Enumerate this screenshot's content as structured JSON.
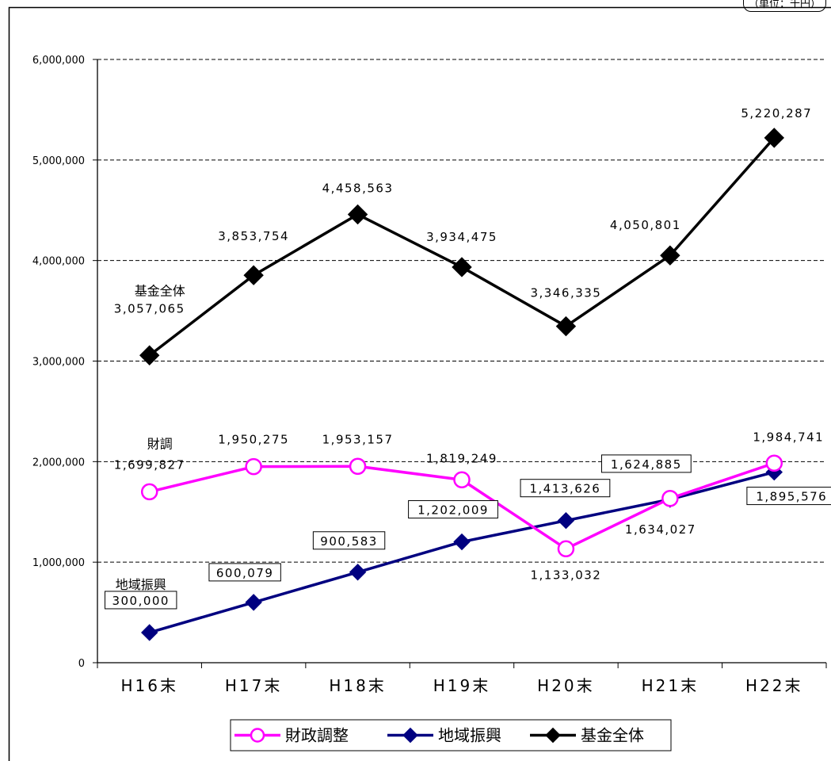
{
  "unit_label": "（単位：千円）",
  "chart_data": {
    "type": "line",
    "title": "",
    "xlabel": "",
    "ylabel": "",
    "categories": [
      "H16末",
      "H17末",
      "H18末",
      "H19末",
      "H20末",
      "H21末",
      "H22末"
    ],
    "ylim": [
      0,
      6000000
    ],
    "yticks": [
      "0",
      "1,000,000",
      "2,000,000",
      "3,000,000",
      "4,000,000",
      "5,000,000",
      "6,000,000"
    ],
    "grid": "horizontal-dashed",
    "legend_position": "bottom",
    "series": [
      {
        "name": "財政調整",
        "marker": "open-circle",
        "color": "#ff00ff",
        "values": [
          1699827,
          1950275,
          1953157,
          1819249,
          1133032,
          1634027,
          1984741
        ],
        "labels": [
          "1,699,827",
          "1,950,275",
          "1,953,157",
          "1,819,249",
          "1,133,032",
          "1,634,027",
          "1,984,741"
        ],
        "series_label": "財調"
      },
      {
        "name": "地域振興",
        "marker": "diamond",
        "color": "#000080",
        "values": [
          300000,
          600079,
          900583,
          1202009,
          1413626,
          1624885,
          1895576
        ],
        "labels": [
          "300,000",
          "600,079",
          "900,583",
          "1,202,009",
          "1,413,626",
          "1,624,885",
          "1,895,576"
        ],
        "series_label": "地域振興"
      },
      {
        "name": "基金全体",
        "marker": "diamond",
        "color": "#000000",
        "values": [
          3057065,
          3853754,
          4458563,
          3934475,
          3346335,
          4050801,
          5220287
        ],
        "labels": [
          "3,057,065",
          "3,853,754",
          "4,458,563",
          "3,934,475",
          "3,346,335",
          "4,050,801",
          "5,220,287"
        ],
        "series_label": "基金全体"
      }
    ]
  }
}
